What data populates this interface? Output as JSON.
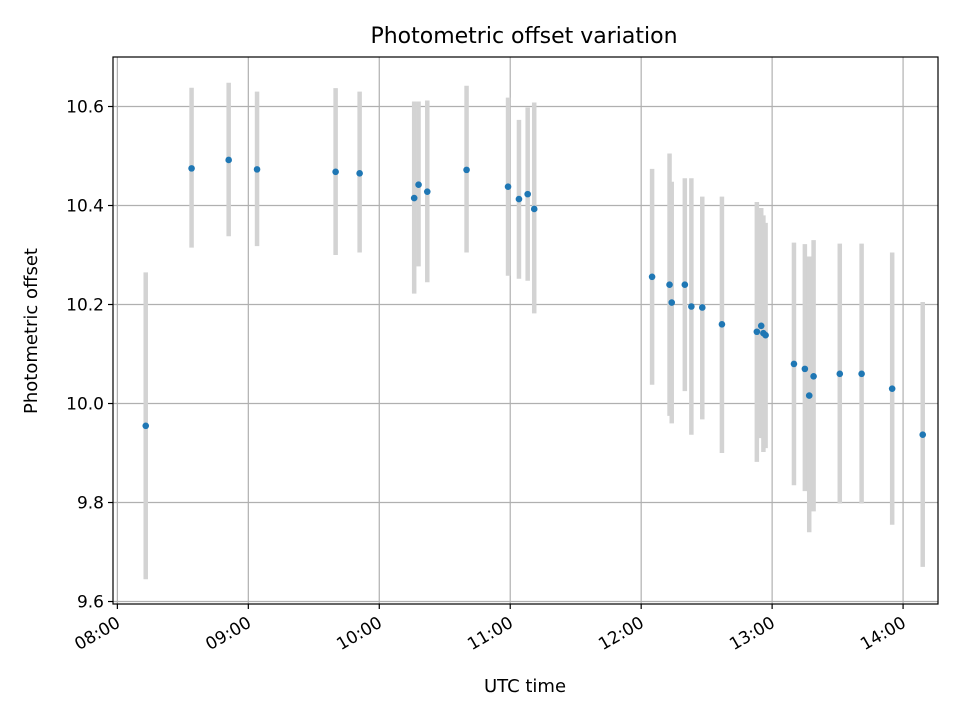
{
  "chart_data": {
    "type": "scatter",
    "title": "Photometric offset variation",
    "xlabel": "UTC time",
    "ylabel": "Photometric offset",
    "x_tick_labels": [
      "08:00",
      "09:00",
      "10:00",
      "11:00",
      "12:00",
      "13:00",
      "14:00"
    ],
    "y_tick_labels": [
      "9.6",
      "9.8",
      "10.0",
      "10.2",
      "10.4",
      "10.6"
    ],
    "xlim": [
      "07:58",
      "14:16"
    ],
    "ylim": [
      9.595,
      10.7
    ],
    "grid": true,
    "point_color": "#1f77b4",
    "errorbar_color": "#d3d3d3",
    "points": [
      {
        "x": "08:13",
        "y": 9.955,
        "ylo": 9.645,
        "yhi": 10.265
      },
      {
        "x": "08:34",
        "y": 10.475,
        "ylo": 10.315,
        "yhi": 10.638
      },
      {
        "x": "08:51",
        "y": 10.492,
        "ylo": 10.338,
        "yhi": 10.648
      },
      {
        "x": "09:04",
        "y": 10.473,
        "ylo": 10.318,
        "yhi": 10.63
      },
      {
        "x": "09:40",
        "y": 10.468,
        "ylo": 10.3,
        "yhi": 10.637
      },
      {
        "x": "09:51",
        "y": 10.465,
        "ylo": 10.305,
        "yhi": 10.63
      },
      {
        "x": "10:16",
        "y": 10.415,
        "ylo": 10.222,
        "yhi": 10.61
      },
      {
        "x": "10:18",
        "y": 10.442,
        "ylo": 10.277,
        "yhi": 10.61
      },
      {
        "x": "10:22",
        "y": 10.428,
        "ylo": 10.245,
        "yhi": 10.612
      },
      {
        "x": "10:40",
        "y": 10.472,
        "ylo": 10.305,
        "yhi": 10.642
      },
      {
        "x": "10:59",
        "y": 10.438,
        "ylo": 10.258,
        "yhi": 10.618
      },
      {
        "x": "11:04",
        "y": 10.413,
        "ylo": 10.252,
        "yhi": 10.573
      },
      {
        "x": "11:08",
        "y": 10.423,
        "ylo": 10.248,
        "yhi": 10.598
      },
      {
        "x": "11:11",
        "y": 10.393,
        "ylo": 10.182,
        "yhi": 10.608
      },
      {
        "x": "12:05",
        "y": 10.256,
        "ylo": 10.038,
        "yhi": 10.474
      },
      {
        "x": "12:13",
        "y": 10.24,
        "ylo": 9.975,
        "yhi": 10.505
      },
      {
        "x": "12:14",
        "y": 10.204,
        "ylo": 9.96,
        "yhi": 10.448
      },
      {
        "x": "12:20",
        "y": 10.24,
        "ylo": 10.025,
        "yhi": 10.455
      },
      {
        "x": "12:23",
        "y": 10.196,
        "ylo": 9.937,
        "yhi": 10.455
      },
      {
        "x": "12:28",
        "y": 10.194,
        "ylo": 9.968,
        "yhi": 10.418
      },
      {
        "x": "12:37",
        "y": 10.16,
        "ylo": 9.9,
        "yhi": 10.418
      },
      {
        "x": "12:53",
        "y": 10.145,
        "ylo": 9.882,
        "yhi": 10.407
      },
      {
        "x": "12:55",
        "y": 10.157,
        "ylo": 9.93,
        "yhi": 10.395
      },
      {
        "x": "12:56",
        "y": 10.142,
        "ylo": 9.902,
        "yhi": 10.38
      },
      {
        "x": "12:57",
        "y": 10.138,
        "ylo": 9.91,
        "yhi": 10.365
      },
      {
        "x": "13:10",
        "y": 10.08,
        "ylo": 9.835,
        "yhi": 10.325
      },
      {
        "x": "13:15",
        "y": 10.07,
        "ylo": 9.823,
        "yhi": 10.322
      },
      {
        "x": "13:17",
        "y": 10.016,
        "ylo": 9.74,
        "yhi": 10.297
      },
      {
        "x": "13:19",
        "y": 10.055,
        "ylo": 9.782,
        "yhi": 10.33
      },
      {
        "x": "13:31",
        "y": 10.06,
        "ylo": 9.798,
        "yhi": 10.323
      },
      {
        "x": "13:41",
        "y": 10.06,
        "ylo": 9.798,
        "yhi": 10.323
      },
      {
        "x": "13:55",
        "y": 10.03,
        "ylo": 9.755,
        "yhi": 10.305
      },
      {
        "x": "14:09",
        "y": 9.937,
        "ylo": 9.67,
        "yhi": 10.205
      }
    ]
  }
}
